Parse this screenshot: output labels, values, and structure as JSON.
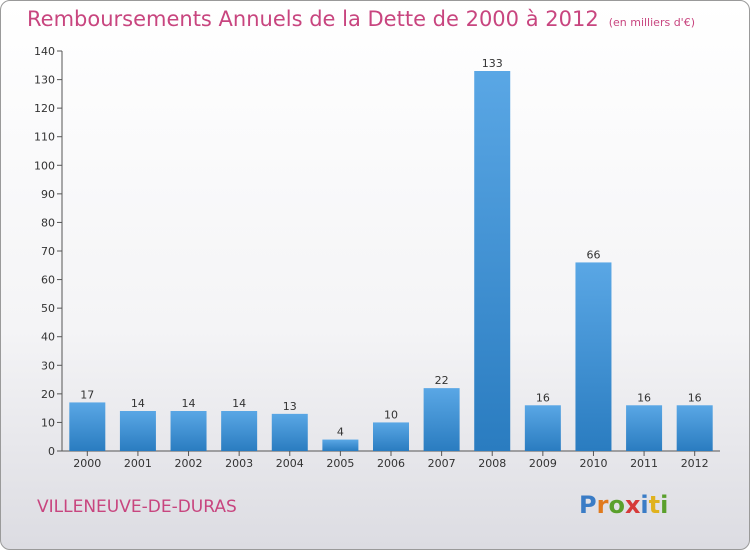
{
  "title": "Remboursements Annuels de la Dette de 2000 à 2012",
  "subtitle": "(en milliers d'€)",
  "commune": "VILLENEUVE-DE-DURAS",
  "logo": {
    "letters": [
      "P",
      "r",
      "o",
      "x",
      "i",
      "t",
      "i"
    ],
    "colors": [
      "#3a7cc6",
      "#e07a1e",
      "#5aa02c",
      "#d63a3a",
      "#3a7cc6",
      "#e0b21e",
      "#5aa02c"
    ]
  },
  "colors": {
    "bar_light": "#5aa7e5",
    "bar_dark": "#2a7cc0",
    "title": "#c8457f"
  },
  "chart_data": {
    "type": "bar",
    "title": "Remboursements Annuels de la Dette de 2000 à 2012",
    "xlabel": "",
    "ylabel": "",
    "categories": [
      "2000",
      "2001",
      "2002",
      "2003",
      "2004",
      "2005",
      "2006",
      "2007",
      "2008",
      "2009",
      "2010",
      "2011",
      "2012"
    ],
    "values": [
      17,
      14,
      14,
      14,
      13,
      4,
      10,
      22,
      133,
      16,
      66,
      16,
      16
    ],
    "ylim": [
      0,
      140
    ],
    "yticks": [
      0,
      10,
      20,
      30,
      40,
      50,
      60,
      70,
      80,
      90,
      100,
      110,
      120,
      130,
      140
    ],
    "grid": false
  }
}
